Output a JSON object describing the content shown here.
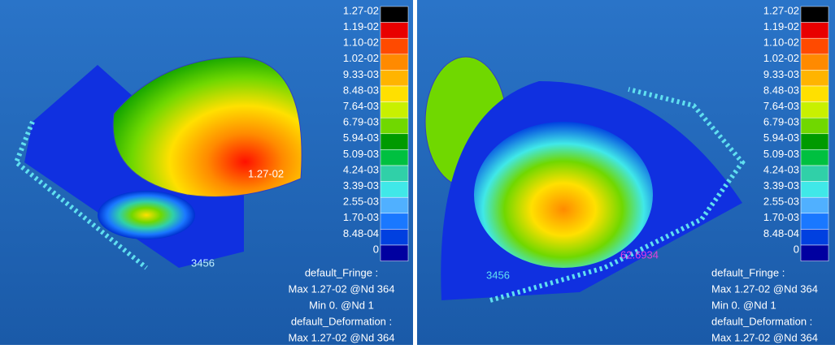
{
  "panels": [
    {
      "legend": [
        {
          "label": "1.27-02",
          "color": "#000000"
        },
        {
          "label": "1.19-02",
          "color": "#e80000"
        },
        {
          "label": "1.10-02",
          "color": "#ff4a00"
        },
        {
          "label": "1.02-02",
          "color": "#ff8a00"
        },
        {
          "label": "9.33-03",
          "color": "#ffb400"
        },
        {
          "label": "8.48-03",
          "color": "#ffe000"
        },
        {
          "label": "7.64-03",
          "color": "#c8f000"
        },
        {
          "label": "6.79-03",
          "color": "#70d800"
        },
        {
          "label": "5.94-03",
          "color": "#009a00"
        },
        {
          "label": "5.09-03",
          "color": "#00c040"
        },
        {
          "label": "4.24-03",
          "color": "#30d0a8"
        },
        {
          "label": "3.39-03",
          "color": "#40e8e8"
        },
        {
          "label": "2.55-03",
          "color": "#50b0ff"
        },
        {
          "label": "1.70-03",
          "color": "#1a78ff"
        },
        {
          "label": "8.48-04",
          "color": "#0040e0"
        },
        {
          "label": "0",
          "color": "#0000a0"
        }
      ],
      "annotations": [
        "1.27-02",
        "3456"
      ],
      "info": [
        "default_Fringe :",
        "Max 1.27-02 @Nd 364",
        "Min  0. @Nd 1",
        "default_Deformation :",
        "Max 1.27-02 @Nd 364"
      ]
    },
    {
      "legend": [
        {
          "label": "1.27-02",
          "color": "#000000"
        },
        {
          "label": "1.19-02",
          "color": "#e80000"
        },
        {
          "label": "1.10-02",
          "color": "#ff4a00"
        },
        {
          "label": "1.02-02",
          "color": "#ff8a00"
        },
        {
          "label": "9.33-03",
          "color": "#ffb400"
        },
        {
          "label": "8.48-03",
          "color": "#ffe000"
        },
        {
          "label": "7.64-03",
          "color": "#c8f000"
        },
        {
          "label": "6.79-03",
          "color": "#70d800"
        },
        {
          "label": "5.94-03",
          "color": "#009a00"
        },
        {
          "label": "5.09-03",
          "color": "#00c040"
        },
        {
          "label": "4.24-03",
          "color": "#30d0a8"
        },
        {
          "label": "3.39-03",
          "color": "#40e8e8"
        },
        {
          "label": "2.55-03",
          "color": "#50b0ff"
        },
        {
          "label": "1.70-03",
          "color": "#1a78ff"
        },
        {
          "label": "8.48-04",
          "color": "#0040e0"
        },
        {
          "label": "0",
          "color": "#0000a0"
        }
      ],
      "annotations": [
        "62.6934",
        "3456"
      ],
      "info": [
        "default_Fringe :",
        "Max 1.27-02 @Nd 364",
        "Min  0. @Nd 1",
        "default_Deformation :",
        "Max 1.27-02 @Nd 364"
      ]
    }
  ]
}
